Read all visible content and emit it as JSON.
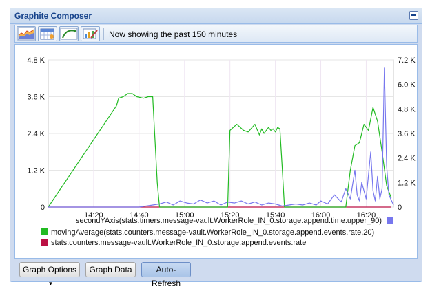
{
  "window": {
    "title": "Graphite Composer"
  },
  "toolbar": {
    "status_text": "Now showing the past 150 minutes",
    "buttons": [
      {
        "name": "graph-templates-icon"
      },
      {
        "name": "select-date-range-icon"
      },
      {
        "name": "select-recent-data-icon"
      },
      {
        "name": "create-url-icon"
      }
    ]
  },
  "bottom": {
    "graph_options_label": "Graph Options",
    "graph_data_label": "Graph Data",
    "auto_refresh_label": "Auto-Refresh"
  },
  "chart_data": {
    "type": "line",
    "title": "",
    "xlabel": "",
    "ylabel": "",
    "x_ticks": [
      "14:20",
      "14:40",
      "15:00",
      "15:20",
      "15:40",
      "16:00",
      "16:20"
    ],
    "x_tick_minutes": [
      20,
      40,
      60,
      80,
      100,
      120,
      140
    ],
    "xlim_minutes": [
      0,
      152
    ],
    "y_left_ticks": [
      "0",
      "1.2 K",
      "2.4 K",
      "3.6 K",
      "4.8 K"
    ],
    "y_left_values": [
      0,
      1200,
      2400,
      3600,
      4800
    ],
    "ylim_left": [
      0,
      4800
    ],
    "y_right_ticks": [
      "0",
      "1.2 K",
      "2.4 K",
      "3.6 K",
      "4.8 K",
      "6.0 K",
      "7.2 K"
    ],
    "y_right_values": [
      0,
      1200,
      2400,
      3600,
      4800,
      6000,
      7200
    ],
    "ylim_right": [
      0,
      7200
    ],
    "grid": true,
    "legend_position": "bottom",
    "series": [
      {
        "name": "secondYAxis(stats.timers.message-vault.WorkerRole_IN_0.storage.append.time.upper_90)",
        "color": "#7777ee",
        "axis": "right",
        "x": [
          0,
          40,
          49,
          52,
          55,
          58,
          61,
          64,
          67,
          70,
          73,
          76,
          79,
          82,
          85,
          88,
          91,
          94,
          97,
          100,
          103,
          106,
          109,
          112,
          115,
          118,
          120,
          123,
          126,
          129,
          131,
          133,
          135,
          136,
          137,
          138,
          140,
          142,
          143,
          144,
          145,
          146,
          147,
          148,
          149,
          150,
          152
        ],
        "values": [
          0,
          0,
          150,
          250,
          100,
          300,
          200,
          150,
          350,
          200,
          300,
          100,
          250,
          200,
          300,
          150,
          250,
          100,
          200,
          150,
          50,
          100,
          150,
          100,
          200,
          100,
          300,
          150,
          600,
          250,
          900,
          400,
          1800,
          600,
          300,
          1200,
          400,
          2700,
          800,
          300,
          1500,
          400,
          900,
          6800,
          2000,
          600,
          100
        ]
      },
      {
        "name": "movingAverage(stats.counters.message-vault.WorkerRole_IN_0.storage.append.events.rate,20)",
        "color": "#22bb22",
        "axis": "left",
        "x": [
          0,
          30,
          31,
          33,
          35,
          37,
          39,
          42,
          44,
          46,
          47,
          48,
          49,
          50,
          52,
          54,
          57,
          60,
          63,
          66,
          69,
          72,
          75,
          78,
          79,
          80,
          83,
          86,
          88,
          91,
          93,
          94,
          95,
          97,
          98,
          99,
          100,
          101,
          102,
          103,
          104,
          106,
          109,
          111,
          113,
          115,
          117,
          119,
          121,
          123,
          125,
          127,
          129,
          131,
          133,
          135,
          137,
          139,
          141,
          143,
          145,
          147,
          149,
          151
        ],
        "values": [
          0,
          3300,
          3550,
          3600,
          3700,
          3700,
          3600,
          3550,
          3600,
          3600,
          2200,
          800,
          0,
          0,
          0,
          0,
          0,
          0,
          0,
          0,
          0,
          0,
          0,
          0,
          0,
          2500,
          2700,
          2500,
          2450,
          2700,
          2350,
          2550,
          2400,
          2600,
          2500,
          2550,
          2450,
          2600,
          2550,
          1300,
          0,
          0,
          0,
          0,
          0,
          0,
          0,
          0,
          0,
          0,
          0,
          0,
          0,
          0,
          1200,
          2000,
          2100,
          2700,
          2500,
          3250,
          2800,
          1800,
          700,
          300
        ]
      },
      {
        "name": "stats.counters.message-vault.WorkerRole_IN_0.storage.append.events.rate",
        "color": "#bb1144",
        "axis": "left",
        "x": [
          0,
          30,
          31,
          32,
          33,
          34,
          35,
          36,
          37,
          38,
          39,
          40,
          41,
          42,
          43,
          44,
          45,
          46,
          47,
          48,
          49,
          50,
          52,
          54,
          57,
          60,
          63,
          66,
          69,
          72,
          75,
          78,
          79,
          80,
          81,
          82,
          83,
          84,
          85,
          86,
          87,
          88,
          89,
          90,
          91,
          92,
          93,
          94,
          95,
          96,
          97,
          98,
          99,
          100,
          101,
          102,
          103,
          104,
          106,
          109,
          111,
          113,
          115,
          117,
          119,
          121,
          123,
          125,
          127,
          129,
          131,
          133,
          134,
          135,
          136,
          137,
          138,
          139,
          140,
          141,
          142,
          143,
          144,
          145,
          146,
          147,
          148,
          149,
          150,
          151
        ],
        "values": [
          0,
          0,
          0,
          0,
          0,
          0,
          0,
          0,
          0,
          0,
          0,
          0,
          0,
          0,
          0,
          0,
          0,
          0,
          0,
          0,
          0,
          0,
          0,
          0,
          0,
          0,
          0,
          0,
          0,
          0,
          0,
          0,
          0,
          0,
          0,
          0,
          0,
          0,
          0,
          0,
          0,
          0,
          0,
          0,
          0,
          0,
          0,
          0,
          0,
          0,
          0,
          0,
          0,
          0,
          0,
          0,
          0,
          0,
          0,
          0,
          0,
          0,
          0,
          0,
          0,
          0,
          0,
          0,
          0,
          0,
          0,
          0,
          0,
          0,
          0,
          0,
          0,
          0,
          0,
          0,
          0,
          0,
          0,
          0,
          0,
          0,
          0,
          0,
          0,
          0
        ]
      }
    ]
  }
}
